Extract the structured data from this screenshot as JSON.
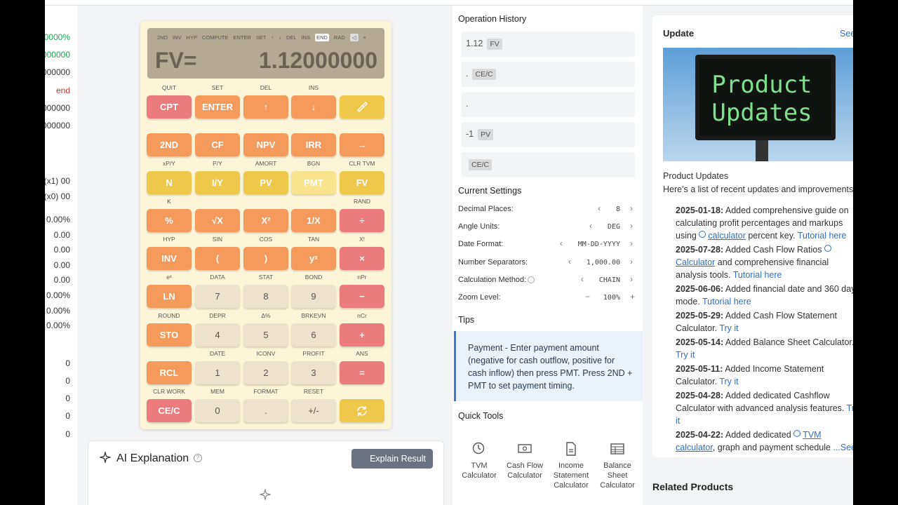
{
  "left_column": {
    "values": [
      "0000%",
      "000000",
      "000000",
      "end",
      "000000",
      "000000",
      "00 (x1)",
      "00 (x0)",
      "0.00%",
      "0.00",
      "0.00",
      "0.00",
      "0.00",
      "0.00%",
      "0.00%",
      "0.00%",
      "0",
      "0",
      "0",
      "0",
      "0"
    ]
  },
  "calculator": {
    "status_bar": [
      "2ND",
      "INV",
      "HYP",
      "COMPUTE",
      "ENTER",
      "SET",
      "↑",
      "↓",
      "DEL",
      "INS",
      "END",
      "RAD",
      "◁",
      "×"
    ],
    "display": {
      "label": "FV=",
      "value": "1.12000000"
    },
    "keys": [
      [
        {
          "secondary": "QUIT",
          "label": "CPT"
        },
        {
          "secondary": "SET",
          "label": "ENTER"
        },
        {
          "secondary": "DEL",
          "label": "↑"
        },
        {
          "secondary": "INS",
          "label": "↓"
        },
        {}
      ],
      [
        {
          "label": "2ND"
        },
        {
          "label": "CF"
        },
        {
          "label": "NPV"
        },
        {
          "label": "IRR"
        },
        {
          "label": "→"
        }
      ],
      [
        {
          "secondary": "xP/Y",
          "label": "N"
        },
        {
          "secondary": "P/Y",
          "label": "I/Y"
        },
        {
          "secondary": "AMORT",
          "label": "PV"
        },
        {
          "secondary": "BGN",
          "label": "PMT"
        },
        {
          "secondary": "CLR TVM",
          "label": "FV"
        }
      ],
      [
        {
          "secondary": "K",
          "label": "%"
        },
        {
          "label": "√X"
        },
        {
          "label": "X²"
        },
        {
          "label": "1/X"
        },
        {
          "secondary": "RAND",
          "label": "÷"
        }
      ],
      [
        {
          "secondary": "HYP",
          "label": "INV"
        },
        {
          "secondary": "SIN",
          "label": "("
        },
        {
          "secondary": "COS",
          "label": ")"
        },
        {
          "secondary": "TAN",
          "label": "yˣ"
        },
        {
          "secondary": "X!",
          "label": "×"
        }
      ],
      [
        {
          "secondary": "eˣ",
          "label": "LN"
        },
        {
          "secondary": "DATA",
          "label": "7"
        },
        {
          "secondary": "STAT",
          "label": "8"
        },
        {
          "secondary": "BOND",
          "label": "9"
        },
        {
          "secondary": "nPr",
          "label": "−"
        }
      ],
      [
        {
          "secondary": "ROUND",
          "label": "STO"
        },
        {
          "secondary": "DEPR",
          "label": "4"
        },
        {
          "secondary": "Δ%",
          "label": "5"
        },
        {
          "secondary": "BRKEVN",
          "label": "6"
        },
        {
          "secondary": "nCr",
          "label": "+"
        }
      ],
      [
        {
          "label": "RCL"
        },
        {
          "secondary": "DATE",
          "label": "1"
        },
        {
          "secondary": "ICONV",
          "label": "2"
        },
        {
          "secondary": "PROFIT",
          "label": "3"
        },
        {
          "secondary": "ANS",
          "label": "="
        }
      ],
      [
        {
          "secondary": "CLR WORK",
          "label": "CE/C"
        },
        {
          "secondary": "MEM",
          "label": "0"
        },
        {
          "secondary": "FORMAT",
          "label": "."
        },
        {
          "secondary": "RESET",
          "label": "+/-"
        },
        {}
      ]
    ]
  },
  "ai_explanation": {
    "title": "AI Explanation",
    "button": "Explain Result"
  },
  "operation_history": {
    "title": "Operation History",
    "items": [
      {
        "value": "1.12",
        "key": "FV"
      },
      {
        "value": ".",
        "key": "CE/C"
      },
      {
        "value": "."
      },
      {
        "value": "-1",
        "key": "PV"
      },
      {
        "key": "CE/C"
      }
    ]
  },
  "current_settings": {
    "title": "Current Settings",
    "rows": [
      {
        "label": "Decimal Places:",
        "value": "8"
      },
      {
        "label": "Angle Units:",
        "value": "DEG"
      },
      {
        "label": "Date Format:",
        "value": "MM-DD-YYYY"
      },
      {
        "label": "Number Separators:",
        "value": "1,000.00"
      },
      {
        "label": "Calculation Method:",
        "value": "CHAIN"
      },
      {
        "label": "Zoom Level:",
        "value": "100%"
      }
    ]
  },
  "tips": {
    "title": "Tips",
    "text": "Payment - Enter payment amount (negative for cash outflow, positive for cash inflow) then press PMT. Press 2ND + PMT to set payment timing."
  },
  "quick_tools": {
    "title": "Quick Tools",
    "tools": [
      "TVM Calculator",
      "Cash Flow Calculator",
      "Income Statement Calculator",
      "Balance Sheet Calculator"
    ]
  },
  "update": {
    "title": "Update",
    "see": "See",
    "image_text": [
      "Product",
      "Updates"
    ],
    "heading": "Product Updates",
    "intro": "Here's a list of recent updates and improvements",
    "items": [
      {
        "date": "2025-01-18:",
        "parts": [
          {
            "text": " Added comprehensive guide on calculating profit percentages and markups using "
          },
          {
            "link": "calculator"
          },
          {
            "text": " percent key. "
          },
          {
            "link": "Tutorial here"
          }
        ]
      },
      {
        "date": "2025-07-28:",
        "parts": [
          {
            "text": " Added Cash Flow Ratios "
          },
          {
            "link": "Calculator"
          },
          {
            "text": " and comprehensive financial analysis tools. "
          },
          {
            "link": "Tutorial here"
          }
        ]
      },
      {
        "date": "2025-06-06:",
        "parts": [
          {
            "text": " Added financial date and 360 day mode. "
          },
          {
            "link": "Tutorial here"
          }
        ]
      },
      {
        "date": "2025-05-29:",
        "parts": [
          {
            "text": " Added Cash Flow Statement Calculator. "
          },
          {
            "link": "Try it"
          }
        ]
      },
      {
        "date": "2025-05-14:",
        "parts": [
          {
            "text": " Added Balance Sheet Calculator. "
          },
          {
            "link": "Try it"
          }
        ]
      },
      {
        "date": "2025-05-11:",
        "parts": [
          {
            "text": " Added Income Statement Calculator. "
          },
          {
            "link": "Try it"
          }
        ]
      },
      {
        "date": "2025-04-28:",
        "parts": [
          {
            "text": " Added dedicated Cashflow Calculator with advanced analysis features. "
          },
          {
            "link": "Try it"
          }
        ]
      },
      {
        "date": "2025-04-22:",
        "parts": [
          {
            "text": " Added dedicated "
          },
          {
            "link": "TVM calculator"
          },
          {
            "text": ", graph and payment schedule "
          },
          {
            "link": "...See"
          }
        ]
      }
    ]
  },
  "related_products": {
    "title": "Related Products"
  }
}
